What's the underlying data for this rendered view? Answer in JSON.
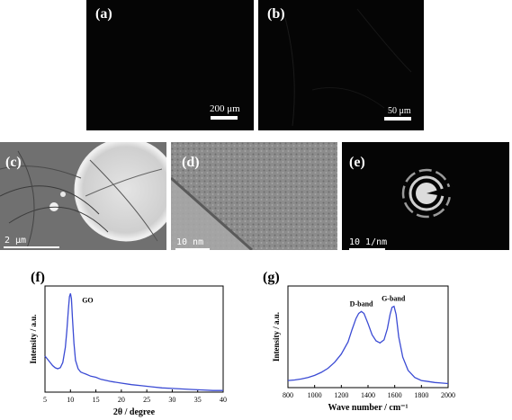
{
  "panels": {
    "a": {
      "label": "(a)",
      "scale": "200 μm"
    },
    "b": {
      "label": "(b)",
      "scale": "50 μm"
    },
    "c": {
      "label": "(c)",
      "scale": "2 μm"
    },
    "d": {
      "label": "(d)",
      "scale": "10 nm"
    },
    "e": {
      "label": "(e)",
      "scale": "10 1/nm"
    },
    "f": {
      "label": "(f)"
    },
    "g": {
      "label": "(g)"
    }
  },
  "chart_data": [
    {
      "type": "line",
      "panel": "f",
      "xlabel": "2θ / degree",
      "ylabel": "Intensity / a.u.",
      "xlim": [
        5,
        40
      ],
      "xticks": [
        5,
        10,
        15,
        20,
        25,
        30,
        35,
        40
      ],
      "yticks_shown": false,
      "annotations": [
        {
          "text": "GO",
          "x": 10.2
        }
      ],
      "color": "#3b4bd4",
      "series": [
        {
          "x": [
            5,
            5.5,
            6,
            6.5,
            7,
            7.5,
            8,
            8.5,
            9,
            9.3,
            9.6,
            9.8,
            10,
            10.2,
            10.4,
            10.7,
            11,
            11.5,
            12,
            12.5,
            13,
            14,
            15,
            16,
            17,
            18,
            20,
            22,
            24,
            26,
            28,
            30,
            32,
            34,
            36,
            38,
            40
          ],
          "y": [
            0.34,
            0.31,
            0.28,
            0.25,
            0.23,
            0.22,
            0.23,
            0.28,
            0.42,
            0.58,
            0.78,
            0.9,
            0.93,
            0.88,
            0.7,
            0.46,
            0.3,
            0.22,
            0.19,
            0.18,
            0.17,
            0.15,
            0.14,
            0.12,
            0.11,
            0.1,
            0.085,
            0.07,
            0.06,
            0.05,
            0.04,
            0.035,
            0.03,
            0.025,
            0.02,
            0.015,
            0.015
          ]
        }
      ]
    },
    {
      "type": "line",
      "panel": "g",
      "xlabel": "Wave number / cm⁻¹",
      "ylabel": "Intensity / a.u.",
      "xlim": [
        800,
        2000
      ],
      "xticks": [
        800,
        1000,
        1200,
        1400,
        1600,
        1800,
        2000
      ],
      "yticks_shown": false,
      "annotations": [
        {
          "text": "D-band",
          "x": 1350
        },
        {
          "text": "G-band",
          "x": 1590
        }
      ],
      "color": "#3b4bd4",
      "series": [
        {
          "x": [
            800,
            850,
            900,
            950,
            1000,
            1050,
            1100,
            1150,
            1200,
            1250,
            1280,
            1310,
            1330,
            1350,
            1370,
            1400,
            1430,
            1460,
            1490,
            1520,
            1545,
            1565,
            1580,
            1595,
            1610,
            1630,
            1660,
            1700,
            1750,
            1800,
            1850,
            1900,
            1950,
            2000
          ],
          "y": [
            0.07,
            0.075,
            0.085,
            0.1,
            0.12,
            0.15,
            0.19,
            0.25,
            0.33,
            0.45,
            0.57,
            0.68,
            0.73,
            0.75,
            0.73,
            0.63,
            0.52,
            0.46,
            0.44,
            0.47,
            0.58,
            0.72,
            0.79,
            0.8,
            0.72,
            0.5,
            0.3,
            0.17,
            0.1,
            0.07,
            0.06,
            0.05,
            0.045,
            0.04
          ]
        }
      ]
    }
  ]
}
